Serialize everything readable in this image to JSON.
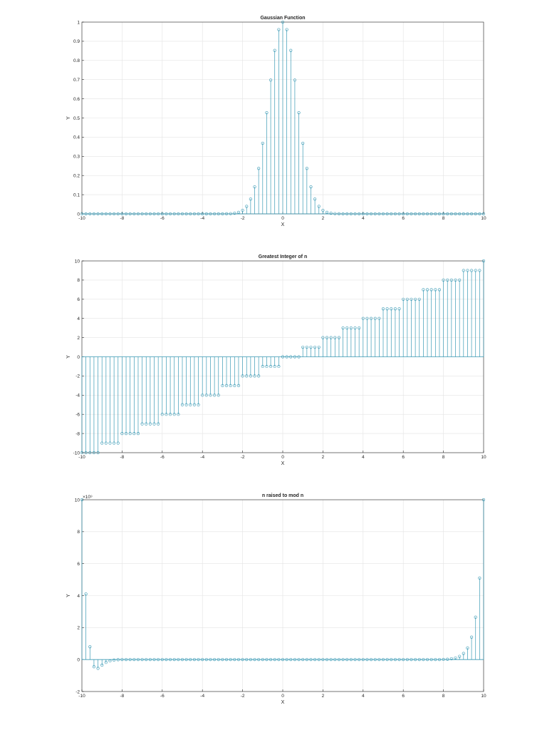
{
  "chart_data": [
    {
      "type": "stem",
      "title": "Gaussian Function",
      "xlabel": "X",
      "ylabel": "Y",
      "xlim": [
        -10,
        10
      ],
      "ylim": [
        0,
        1
      ],
      "xticks": [
        -10,
        -8,
        -6,
        -4,
        -2,
        0,
        2,
        4,
        6,
        8,
        10
      ],
      "yticks": [
        0,
        0.1,
        0.2,
        0.3,
        0.4,
        0.5,
        0.6,
        0.7,
        0.8,
        0.9,
        1
      ],
      "ytick_labels": [
        "0",
        "0.1",
        "0.2",
        "0.3",
        "0.4",
        "0.5",
        "0.6",
        "0.7",
        "0.8",
        "0.9",
        "1"
      ],
      "grid": true,
      "color": "#3a9ab5",
      "x": [
        -10,
        -9.8,
        -9.6,
        -9.4,
        -9.2,
        -9,
        -8.8,
        -8.6,
        -8.4,
        -8.2,
        -8,
        -7.8,
        -7.6,
        -7.4,
        -7.2,
        -7,
        -6.8,
        -6.6,
        -6.4,
        -6.2,
        -6,
        -5.8,
        -5.6,
        -5.4,
        -5.2,
        -5,
        -4.8,
        -4.6,
        -4.4,
        -4.2,
        -4,
        -3.8,
        -3.6,
        -3.4,
        -3.2,
        -3,
        -2.8,
        -2.6,
        -2.4,
        -2.2,
        -2,
        -1.8,
        -1.6,
        -1.4,
        -1.2,
        -1,
        -0.8,
        -0.6,
        -0.4,
        -0.2,
        0,
        0.2,
        0.4,
        0.6,
        0.8,
        1,
        1.2,
        1.4,
        1.6,
        1.8,
        2,
        2.2,
        2.4,
        2.6,
        2.8,
        3,
        3.2,
        3.4,
        3.6,
        3.8,
        4,
        4.2,
        4.4,
        4.6,
        4.8,
        5,
        5.2,
        5.4,
        5.6,
        5.8,
        6,
        6.2,
        6.4,
        6.6,
        6.8,
        7,
        7.2,
        7.4,
        7.6,
        7.8,
        8,
        8.2,
        8.4,
        8.6,
        8.8,
        9,
        9.2,
        9.4,
        9.6,
        9.8,
        10
      ],
      "y": [
        0,
        0,
        0,
        0,
        0,
        0,
        0,
        0,
        0,
        0,
        0,
        0,
        0,
        0,
        0,
        0,
        0,
        0,
        0,
        0,
        0,
        0,
        0,
        0,
        0,
        0,
        0,
        0,
        0,
        0,
        0,
        0,
        0,
        0,
        0.0001,
        0.0001,
        0.0004,
        0.0012,
        0.0032,
        0.0079,
        0.0183,
        0.0392,
        0.0773,
        0.1409,
        0.2369,
        0.3679,
        0.5273,
        0.6977,
        0.8521,
        0.9608,
        1,
        0.9608,
        0.8521,
        0.6977,
        0.5273,
        0.3679,
        0.2369,
        0.1409,
        0.0773,
        0.0392,
        0.0183,
        0.0079,
        0.0032,
        0.0012,
        0.0004,
        0.0001,
        0.0001,
        0,
        0,
        0,
        0,
        0,
        0,
        0,
        0,
        0,
        0,
        0,
        0,
        0,
        0,
        0,
        0,
        0,
        0,
        0,
        0,
        0,
        0,
        0,
        0,
        0,
        0,
        0,
        0,
        0,
        0,
        0,
        0,
        0,
        0
      ]
    },
    {
      "type": "stem",
      "title": "Greatest Integer of n",
      "xlabel": "X",
      "ylabel": "Y",
      "xlim": [
        -10,
        10
      ],
      "ylim": [
        -10,
        10
      ],
      "xticks": [
        -10,
        -8,
        -6,
        -4,
        -2,
        0,
        2,
        4,
        6,
        8,
        10
      ],
      "yticks": [
        -10,
        -8,
        -6,
        -4,
        -2,
        0,
        2,
        4,
        6,
        8,
        10
      ],
      "ytick_labels": [
        "-10",
        "-8",
        "-6",
        "-4",
        "-2",
        "0",
        "2",
        "4",
        "6",
        "8",
        "10"
      ],
      "grid": true,
      "color": "#3a9ab5",
      "x": [
        -10,
        -9.8,
        -9.6,
        -9.4,
        -9.2,
        -9,
        -8.8,
        -8.6,
        -8.4,
        -8.2,
        -8,
        -7.8,
        -7.6,
        -7.4,
        -7.2,
        -7,
        -6.8,
        -6.6,
        -6.4,
        -6.2,
        -6,
        -5.8,
        -5.6,
        -5.4,
        -5.2,
        -5,
        -4.8,
        -4.6,
        -4.4,
        -4.2,
        -4,
        -3.8,
        -3.6,
        -3.4,
        -3.2,
        -3,
        -2.8,
        -2.6,
        -2.4,
        -2.2,
        -2,
        -1.8,
        -1.6,
        -1.4,
        -1.2,
        -1,
        -0.8,
        -0.6,
        -0.4,
        -0.2,
        0,
        0.2,
        0.4,
        0.6,
        0.8,
        1,
        1.2,
        1.4,
        1.6,
        1.8,
        2,
        2.2,
        2.4,
        2.6,
        2.8,
        3,
        3.2,
        3.4,
        3.6,
        3.8,
        4,
        4.2,
        4.4,
        4.6,
        4.8,
        5,
        5.2,
        5.4,
        5.6,
        5.8,
        6,
        6.2,
        6.4,
        6.6,
        6.8,
        7,
        7.2,
        7.4,
        7.6,
        7.8,
        8,
        8.2,
        8.4,
        8.6,
        8.8,
        9,
        9.2,
        9.4,
        9.6,
        9.8,
        10
      ],
      "y": [
        -10,
        -10,
        -10,
        -10,
        -10,
        -9,
        -9,
        -9,
        -9,
        -9,
        -8,
        -8,
        -8,
        -8,
        -8,
        -7,
        -7,
        -7,
        -7,
        -7,
        -6,
        -6,
        -6,
        -6,
        -6,
        -5,
        -5,
        -5,
        -5,
        -5,
        -4,
        -4,
        -4,
        -4,
        -4,
        -3,
        -3,
        -3,
        -3,
        -3,
        -2,
        -2,
        -2,
        -2,
        -2,
        -1,
        -1,
        -1,
        -1,
        -1,
        0,
        0,
        0,
        0,
        0,
        1,
        1,
        1,
        1,
        1,
        2,
        2,
        2,
        2,
        2,
        3,
        3,
        3,
        3,
        3,
        4,
        4,
        4,
        4,
        4,
        5,
        5,
        5,
        5,
        5,
        6,
        6,
        6,
        6,
        6,
        7,
        7,
        7,
        7,
        7,
        8,
        8,
        8,
        8,
        8,
        9,
        9,
        9,
        9,
        9,
        10
      ]
    },
    {
      "type": "stem",
      "title": "n raised to mod n",
      "xlabel": "X",
      "ylabel": "Y",
      "xlim": [
        -10,
        10
      ],
      "ylim": [
        -2,
        10
      ],
      "y_scale_factor": "×10⁹",
      "xticks": [
        -10,
        -8,
        -6,
        -4,
        -2,
        0,
        2,
        4,
        6,
        8,
        10
      ],
      "yticks": [
        -2,
        0,
        2,
        4,
        6,
        8,
        10
      ],
      "ytick_labels": [
        "-2",
        "0",
        "2",
        "4",
        "6",
        "8",
        "10"
      ],
      "grid": true,
      "color": "#3a9ab5",
      "x": [
        -10,
        -9.8,
        -9.6,
        -9.4,
        -9.2,
        -9,
        -8.8,
        -8.6,
        -8.4,
        -8.2,
        -8,
        -7.8,
        -7.6,
        -7.4,
        -7.2,
        -7,
        -6.8,
        -6.6,
        -6.4,
        -6.2,
        -6,
        -5.8,
        -5.6,
        -5.4,
        -5.2,
        -5,
        -4.8,
        -4.6,
        -4.4,
        -4.2,
        -4,
        -3.8,
        -3.6,
        -3.4,
        -3.2,
        -3,
        -2.8,
        -2.6,
        -2.4,
        -2.2,
        -2,
        -1.8,
        -1.6,
        -1.4,
        -1.2,
        -1,
        -0.8,
        -0.6,
        -0.4,
        -0.2,
        0,
        0.2,
        0.4,
        0.6,
        0.8,
        1,
        1.2,
        1.4,
        1.6,
        1.8,
        2,
        2.2,
        2.4,
        2.6,
        2.8,
        3,
        3.2,
        3.4,
        3.6,
        3.8,
        4,
        4.2,
        4.4,
        4.6,
        4.8,
        5,
        5.2,
        5.4,
        5.6,
        5.8,
        6,
        6.2,
        6.4,
        6.6,
        6.8,
        7,
        7.2,
        7.4,
        7.6,
        7.8,
        8,
        8.2,
        8.4,
        8.6,
        8.8,
        9,
        9.2,
        9.4,
        9.6,
        9.8,
        10
      ],
      "y": [
        10,
        4.1,
        0.8,
        -0.45,
        -0.55,
        -0.35,
        -0.18,
        -0.08,
        -0.03,
        -0.01,
        0,
        0,
        0,
        0,
        0,
        0,
        0,
        0,
        0,
        0,
        0,
        0,
        0,
        0,
        0,
        0,
        0,
        0,
        0,
        0,
        0,
        0,
        0,
        0,
        0,
        0,
        0,
        0,
        0,
        0,
        0,
        0,
        0,
        0,
        0,
        0,
        0,
        0,
        0,
        0,
        0,
        0,
        0,
        0,
        0,
        0,
        0,
        0,
        0,
        0,
        0,
        0,
        0,
        0,
        0,
        0,
        0,
        0,
        0,
        0,
        0,
        0,
        0,
        0,
        0,
        0,
        0,
        0,
        0,
        0,
        0,
        0,
        0,
        0,
        0,
        0,
        0,
        0,
        0,
        0,
        0.01,
        0.02,
        0.05,
        0.1,
        0.2,
        0.38,
        0.72,
        1.4,
        2.65,
        5.1,
        10
      ]
    }
  ]
}
